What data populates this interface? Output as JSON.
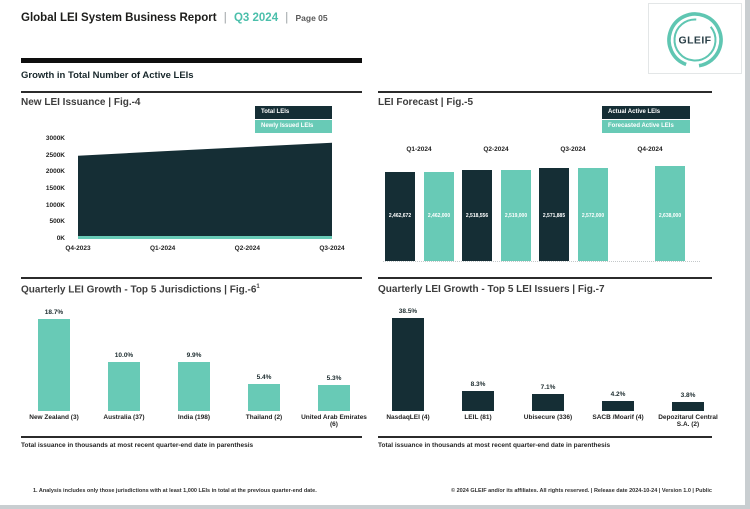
{
  "header": {
    "title": "Global LEI System Business Report",
    "sep1": "|",
    "period": "Q3 2024",
    "sep2": "|",
    "page": "Page 05",
    "logo_text": "GLEIF"
  },
  "section_heading": "Growth in Total Number of Active LEIs",
  "colors": {
    "dark": "#152e35",
    "teal": "#68cab6",
    "accent_text": "#4bbfab"
  },
  "panels": {
    "fig4": {
      "title": "New LEI Issuance | Fig.-4",
      "legend": [
        {
          "label": "Total LEIs",
          "color": "dark"
        },
        {
          "label": "Newly Issued LEIs",
          "color": "teal"
        }
      ]
    },
    "fig5": {
      "title": "LEI Forecast | Fig.-5",
      "legend": [
        {
          "label": "Actual Active LEIs",
          "color": "dark"
        },
        {
          "label": "Forecasted Active LEIs",
          "color": "teal"
        }
      ]
    },
    "fig6": {
      "title_main": "Quarterly LEI Growth - Top 5 Jurisdictions | Fig.-6",
      "title_sup": "1",
      "footer": "Total issuance in thousands at most recent quarter-end date in parenthesis"
    },
    "fig7": {
      "title": "Quarterly LEI Growth - Top 5 LEI Issuers | Fig.-7",
      "footer": "Total issuance in thousands at most recent quarter-end date in parenthesis"
    }
  },
  "page_footer": {
    "note": "1. Analysis includes only those jurisdictions with at least 1,000 LEIs in total at the previous quarter-end date.",
    "copyright": "© 2024 GLEIF and/or its affiliates. All rights reserved.  | Release date 2024-10-24  | Version 1.0 | Public"
  },
  "chart_data": [
    {
      "type": "area",
      "title": "New LEI Issuance | Fig.-4",
      "x": [
        "Q4-2023",
        "Q1-2024",
        "Q2-2024",
        "Q3-2024"
      ],
      "series": [
        {
          "name": "Total LEIs",
          "values": [
            2500000,
            2630000,
            2760000,
            2890000
          ]
        },
        {
          "name": "Newly Issued LEIs",
          "values": [
            90000,
            90000,
            90000,
            90000
          ]
        }
      ],
      "ylim": [
        0,
        3000000
      ],
      "y_ticks": [
        {
          "label": "3000K",
          "value": 3000000
        },
        {
          "label": "2500K",
          "value": 2500000
        },
        {
          "label": "2000K",
          "value": 2000000
        },
        {
          "label": "1500K",
          "value": 1500000
        },
        {
          "label": "1000K",
          "value": 1000000
        },
        {
          "label": "500K",
          "value": 500000
        },
        {
          "label": "0K",
          "value": 0
        }
      ],
      "legend_position": "top-right",
      "grid": false
    },
    {
      "type": "bar",
      "title": "LEI Forecast | Fig.-5",
      "categories": [
        "Q1-2024",
        "Q2-2024",
        "Q3-2024",
        "Q4-2024"
      ],
      "series": [
        {
          "name": "Actual Active LEIs",
          "values": [
            2462672,
            2518556,
            2571885,
            null
          ],
          "labels": [
            "2,462,672",
            "2,518,556",
            "2,571,885",
            null
          ]
        },
        {
          "name": "Forecasted Active LEIs",
          "values": [
            2462000,
            2519000,
            2572000,
            2638000
          ],
          "labels": [
            "2,462,000",
            "2,519,000",
            "2,572,000",
            "2,638,000"
          ]
        }
      ],
      "legend_position": "top-right",
      "grid": false
    },
    {
      "type": "bar",
      "title": "Quarterly LEI Growth - Top 5 Jurisdictions | Fig.-6",
      "categories": [
        "New Zealand (3)",
        "Australia (37)",
        "India (198)",
        "Thailand (2)",
        "United Arab Emirates (6)"
      ],
      "values": [
        18.7,
        10.0,
        9.9,
        5.4,
        5.3
      ],
      "labels": [
        "18.7%",
        "10.0%",
        "9.9%",
        "5.4%",
        "5.3%"
      ],
      "grid": false
    },
    {
      "type": "bar",
      "title": "Quarterly LEI Growth - Top 5 LEI Issuers | Fig.-7",
      "categories": [
        "NasdaqLEI (4)",
        "LEIL (81)",
        "Ubisecure (336)",
        "SACB /Moarif (4)",
        "Depozitarul Central S.A. (2)"
      ],
      "values": [
        38.5,
        8.3,
        7.1,
        4.2,
        3.8
      ],
      "labels": [
        "38.5%",
        "8.3%",
        "7.1%",
        "4.2%",
        "3.8%"
      ],
      "grid": false
    }
  ]
}
